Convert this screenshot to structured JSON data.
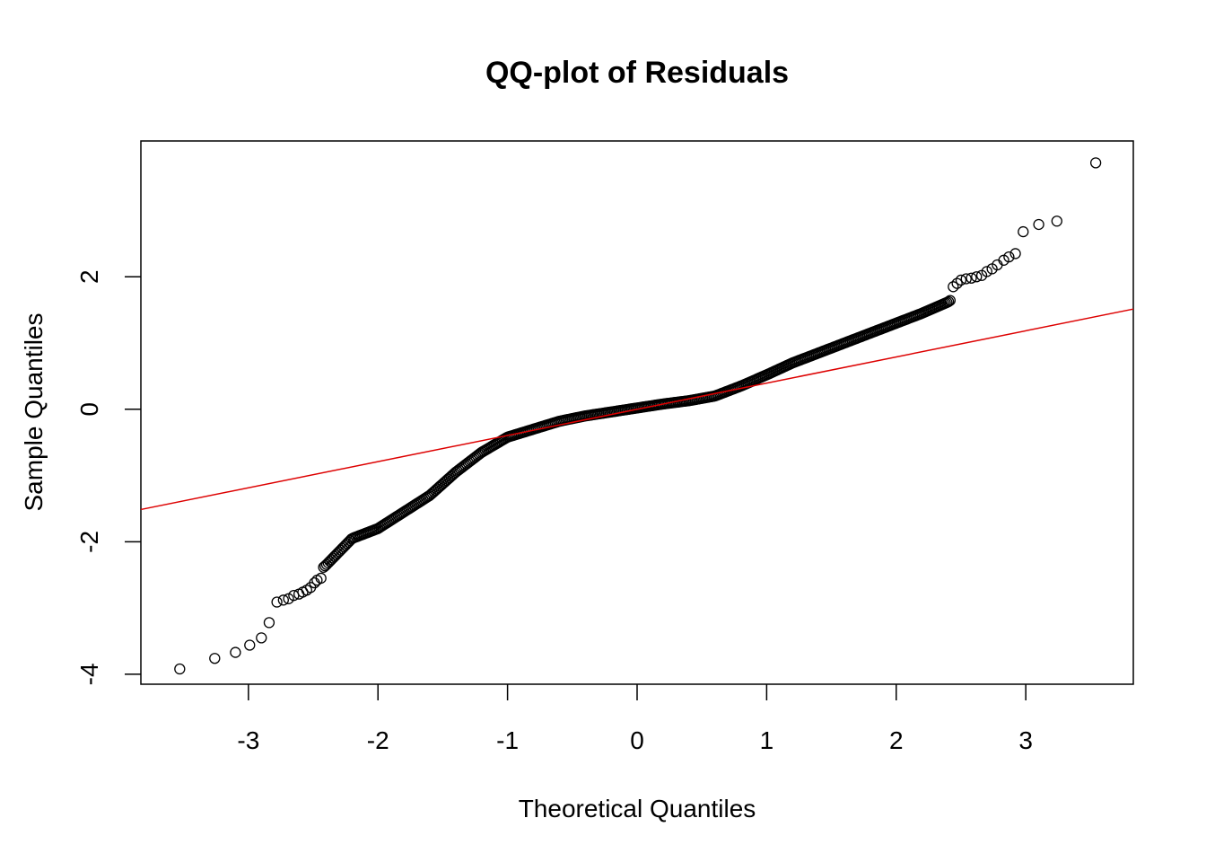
{
  "chart_data": {
    "type": "scatter",
    "title": "QQ-plot of Residuals",
    "xlabel": "Theoretical Quantiles",
    "ylabel": "Sample Quantiles",
    "xlim": [
      -3.83,
      3.83
    ],
    "ylim": [
      -4.15,
      4.05
    ],
    "xticks": [
      -3,
      -2,
      -1,
      0,
      1,
      2,
      3
    ],
    "yticks": [
      -4,
      -2,
      0,
      2
    ],
    "grid": false,
    "legend": "none",
    "colors": {
      "points": "#000000",
      "line": "#dd0000"
    },
    "reference_line": {
      "slope": 0.395,
      "intercept": 0.0
    },
    "curve": [
      [
        -3.0,
        -3.35
      ],
      [
        -2.8,
        -2.9
      ],
      [
        -2.6,
        -2.7
      ],
      [
        -2.4,
        -2.35
      ],
      [
        -2.2,
        -1.95
      ],
      [
        -2.0,
        -1.8
      ],
      [
        -1.8,
        -1.55
      ],
      [
        -1.6,
        -1.3
      ],
      [
        -1.4,
        -0.95
      ],
      [
        -1.2,
        -0.65
      ],
      [
        -1.0,
        -0.42
      ],
      [
        -0.8,
        -0.3
      ],
      [
        -0.6,
        -0.18
      ],
      [
        -0.4,
        -0.1
      ],
      [
        -0.2,
        -0.04
      ],
      [
        0.0,
        0.02
      ],
      [
        0.2,
        0.08
      ],
      [
        0.4,
        0.13
      ],
      [
        0.6,
        0.2
      ],
      [
        0.8,
        0.35
      ],
      [
        1.0,
        0.52
      ],
      [
        1.2,
        0.7
      ],
      [
        1.4,
        0.85
      ],
      [
        1.6,
        1.0
      ],
      [
        1.8,
        1.15
      ],
      [
        2.0,
        1.3
      ],
      [
        2.2,
        1.45
      ],
      [
        2.4,
        1.62
      ],
      [
        2.6,
        1.9
      ],
      [
        2.8,
        2.1
      ],
      [
        3.0,
        2.4
      ]
    ],
    "tail_points": [
      [
        -3.53,
        -3.92
      ],
      [
        -3.26,
        -3.76
      ],
      [
        -3.1,
        -3.67
      ],
      [
        -2.99,
        -3.56
      ],
      [
        -2.9,
        -3.45
      ],
      [
        -2.84,
        -3.22
      ],
      [
        -2.78,
        -2.91
      ],
      [
        -2.73,
        -2.88
      ],
      [
        -2.69,
        -2.86
      ],
      [
        -2.65,
        -2.81
      ],
      [
        -2.61,
        -2.79
      ],
      [
        -2.58,
        -2.76
      ],
      [
        -2.55,
        -2.73
      ],
      [
        -2.52,
        -2.69
      ],
      [
        -2.49,
        -2.62
      ],
      [
        -2.47,
        -2.58
      ],
      [
        -2.44,
        -2.55
      ],
      [
        2.44,
        1.85
      ],
      [
        2.47,
        1.9
      ],
      [
        2.5,
        1.95
      ],
      [
        2.54,
        1.97
      ],
      [
        2.58,
        1.98
      ],
      [
        2.62,
        2.0
      ],
      [
        2.66,
        2.02
      ],
      [
        2.7,
        2.08
      ],
      [
        2.74,
        2.12
      ],
      [
        2.78,
        2.18
      ],
      [
        2.83,
        2.25
      ],
      [
        2.87,
        2.3
      ],
      [
        2.92,
        2.35
      ],
      [
        2.98,
        2.68
      ],
      [
        3.1,
        2.79
      ],
      [
        3.24,
        2.84
      ],
      [
        3.54,
        3.72
      ]
    ]
  }
}
